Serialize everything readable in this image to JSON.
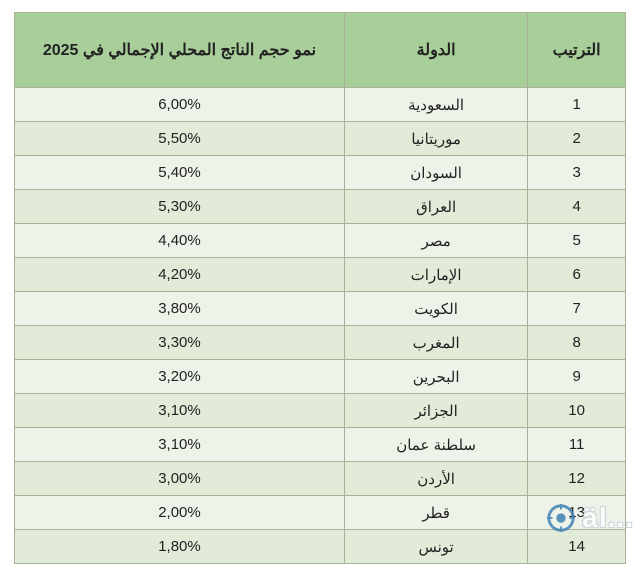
{
  "table": {
    "type": "table",
    "header_bg": "#a8ce9a",
    "row_bg_odd": "#eef3e9",
    "row_bg_even": "#e1ebd8",
    "border_color": "#a6b398",
    "text_color": "#222222",
    "font_family": "Segoe UI, Tahoma, Arial, sans-serif",
    "header_fontsize": 16,
    "cell_fontsize": 15,
    "columns": [
      {
        "key": "rank",
        "label": "الترتيب",
        "width_pct": 16,
        "align": "center"
      },
      {
        "key": "country",
        "label": "الدولة",
        "width_pct": 30,
        "align": "center"
      },
      {
        "key": "value",
        "label": "نمو حجم الناتج المحلي الإجمالي في 2025",
        "width_pct": 54,
        "align": "center"
      }
    ],
    "rows": [
      {
        "rank": "1",
        "country": "السعودية",
        "value": "6,00%"
      },
      {
        "rank": "2",
        "country": "موريتانيا",
        "value": "5,50%"
      },
      {
        "rank": "3",
        "country": "السودان",
        "value": "5,40%"
      },
      {
        "rank": "4",
        "country": "العراق",
        "value": "5,30%"
      },
      {
        "rank": "5",
        "country": "مصر",
        "value": "4,40%"
      },
      {
        "rank": "6",
        "country": "الإمارات",
        "value": "4,20%"
      },
      {
        "rank": "7",
        "country": "الكويت",
        "value": "3,80%"
      },
      {
        "rank": "8",
        "country": "المغرب",
        "value": "3,30%"
      },
      {
        "rank": "9",
        "country": "البحرين",
        "value": "3,20%"
      },
      {
        "rank": "10",
        "country": "الجزائر",
        "value": "3,10%"
      },
      {
        "rank": "11",
        "country": "سلطنة عمان",
        "value": "3,10%"
      },
      {
        "rank": "12",
        "country": "الأردن",
        "value": "3,00%"
      },
      {
        "rank": "13",
        "country": "قطر",
        "value": "2,00%"
      },
      {
        "rank": "14",
        "country": "تونس",
        "value": "1,80%"
      }
    ]
  },
  "watermark": {
    "text": "äl...",
    "icon_color": "#3f80b5",
    "icon_accent": "#ffffff"
  }
}
